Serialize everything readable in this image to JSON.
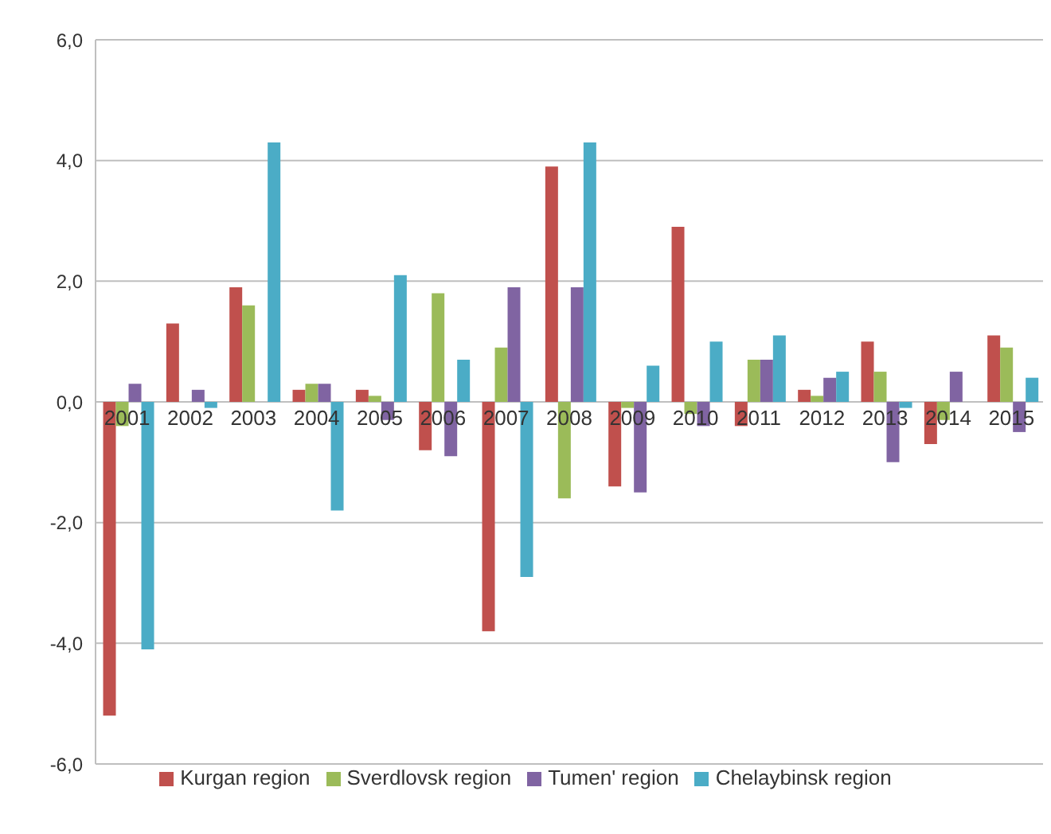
{
  "chart_data": {
    "type": "bar",
    "categories": [
      "2001",
      "2002",
      "2003",
      "2004",
      "2005",
      "2006",
      "2007",
      "2008",
      "2009",
      "2010",
      "2011",
      "2012",
      "2013",
      "2014",
      "2015"
    ],
    "series": [
      {
        "name": "Kurgan region",
        "color": "#c0504d",
        "values": [
          -5.2,
          1.3,
          1.9,
          0.2,
          0.2,
          -0.8,
          -3.8,
          3.9,
          -1.4,
          2.9,
          -0.4,
          0.2,
          1.0,
          -0.7,
          1.1
        ]
      },
      {
        "name": "Sverdlovsk region",
        "color": "#9bbb59",
        "values": [
          -0.4,
          0,
          1.6,
          0.3,
          0.1,
          1.8,
          0.9,
          -1.6,
          -0.1,
          -0.2,
          0.7,
          0.1,
          0.5,
          -0.3,
          0.9
        ]
      },
      {
        "name": "Tumen' region",
        "color": "#8064a2",
        "values": [
          0.3,
          0.2,
          0,
          0.3,
          -0.3,
          -0.9,
          1.9,
          1.9,
          -1.5,
          -0.4,
          0.7,
          0.4,
          -1.0,
          0.5,
          -0.5
        ]
      },
      {
        "name": "Chelaybinsk region",
        "color": "#4bacc6",
        "values": [
          -4.1,
          -0.1,
          4.3,
          -1.8,
          2.1,
          0.7,
          -2.9,
          4.3,
          0.6,
          1.0,
          1.1,
          0.5,
          -0.1,
          0,
          0.4
        ]
      }
    ],
    "ylim": [
      -6,
      6
    ],
    "yticks": [
      {
        "value": -6,
        "label": "-6,0"
      },
      {
        "value": -4,
        "label": "-4,0"
      },
      {
        "value": -2,
        "label": "-2,0"
      },
      {
        "value": 0,
        "label": "0,0"
      },
      {
        "value": 2,
        "label": "2,0"
      },
      {
        "value": 4,
        "label": "4,0"
      },
      {
        "value": 6,
        "label": "6,0"
      }
    ],
    "grid": "y",
    "legend": "bottom"
  }
}
